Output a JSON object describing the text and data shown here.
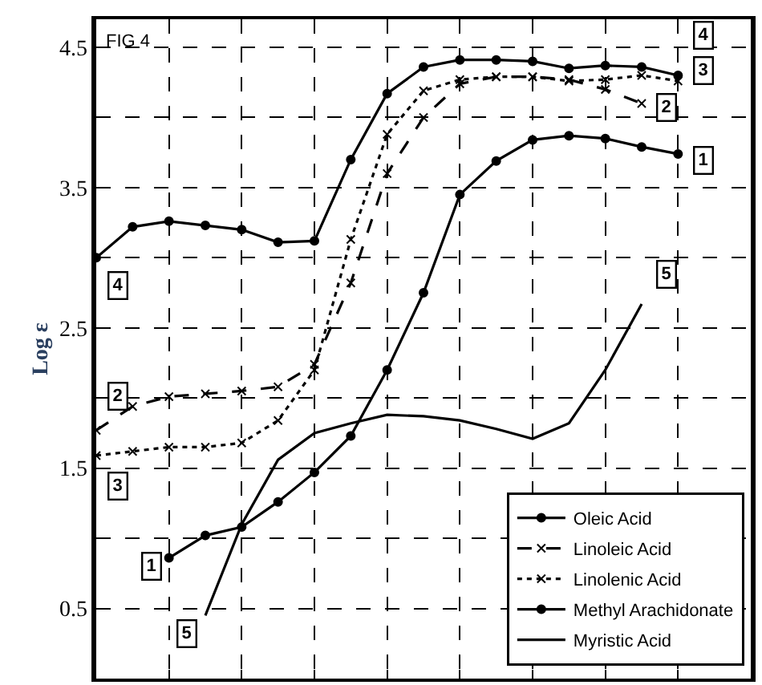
{
  "chart_data": {
    "type": "line",
    "title": "FIG 4",
    "ylabel": "Log ε",
    "categories": [
      null,
      null,
      null,
      null,
      null,
      null,
      null,
      null,
      null,
      null,
      null,
      null,
      null,
      null,
      null,
      null,
      null,
      null,
      null
    ],
    "ylim": [
      0,
      4.7
    ],
    "yticks": [
      0.5,
      {
        "value": 1.0,
        "label": null
      },
      1.5,
      {
        "value": 2.0,
        "label": null
      },
      2.5,
      {
        "value": 3.0,
        "label": null
      },
      3.5,
      {
        "value": 4.0,
        "label": null
      },
      4.5
    ],
    "grid": true,
    "legend": "bottom right",
    "series": [
      {
        "name": "Oleic Acid",
        "color": "#000000",
        "marker": "circle",
        "line_style": "solid",
        "values": [
          null,
          null,
          0.86,
          1.02,
          1.08,
          1.26,
          1.47,
          1.73,
          2.2,
          2.75,
          3.45,
          3.69,
          3.84,
          3.87,
          3.85,
          3.79,
          3.74,
          null,
          null
        ]
      },
      {
        "name": "Linoleic Acid",
        "color": "#000000",
        "marker": "cross",
        "line_style": "dashed",
        "values": [
          1.77,
          1.94,
          2.01,
          2.03,
          2.05,
          2.08,
          2.24,
          2.82,
          3.6,
          4.0,
          4.24,
          4.29,
          4.29,
          4.27,
          4.2,
          4.1,
          null,
          null,
          null
        ]
      },
      {
        "name": "Linolenic Acid",
        "color": "#000000",
        "marker": "cross",
        "line_style": "dotted",
        "values": [
          1.59,
          1.62,
          1.65,
          1.65,
          1.68,
          1.84,
          2.2,
          3.13,
          3.88,
          4.19,
          4.27,
          4.29,
          4.29,
          4.26,
          4.27,
          4.3,
          4.26,
          null,
          null
        ]
      },
      {
        "name": "Methyl Arachidonate",
        "color": "#000000",
        "marker": "circle",
        "line_style": "solid",
        "values": [
          3.0,
          3.22,
          3.26,
          3.23,
          3.2,
          3.11,
          3.12,
          3.7,
          4.17,
          4.36,
          4.41,
          4.41,
          4.4,
          4.35,
          4.37,
          4.36,
          4.3,
          null,
          null
        ]
      },
      {
        "name": "Myristic Acid",
        "color": "#000000",
        "marker": "none",
        "line_style": "solid",
        "values": [
          null,
          null,
          null,
          0.45,
          1.1,
          1.56,
          1.75,
          1.82,
          1.88,
          1.87,
          1.84,
          1.78,
          1.71,
          1.82,
          2.2,
          2.67,
          null,
          null,
          null
        ]
      }
    ],
    "annotations": [
      {
        "text": "1",
        "y": 3.69
      },
      {
        "text": "1",
        "y": 0.8
      },
      {
        "text": "2",
        "y": 4.07
      },
      {
        "text": "2",
        "y": 2.01
      },
      {
        "text": "3",
        "y": 4.33
      },
      {
        "text": "3",
        "y": 1.37
      },
      {
        "text": "4",
        "y": 4.58
      },
      {
        "text": "4",
        "y": 2.8
      },
      {
        "text": "5",
        "y": 2.88
      },
      {
        "text": "5",
        "y": 0.32
      }
    ]
  }
}
